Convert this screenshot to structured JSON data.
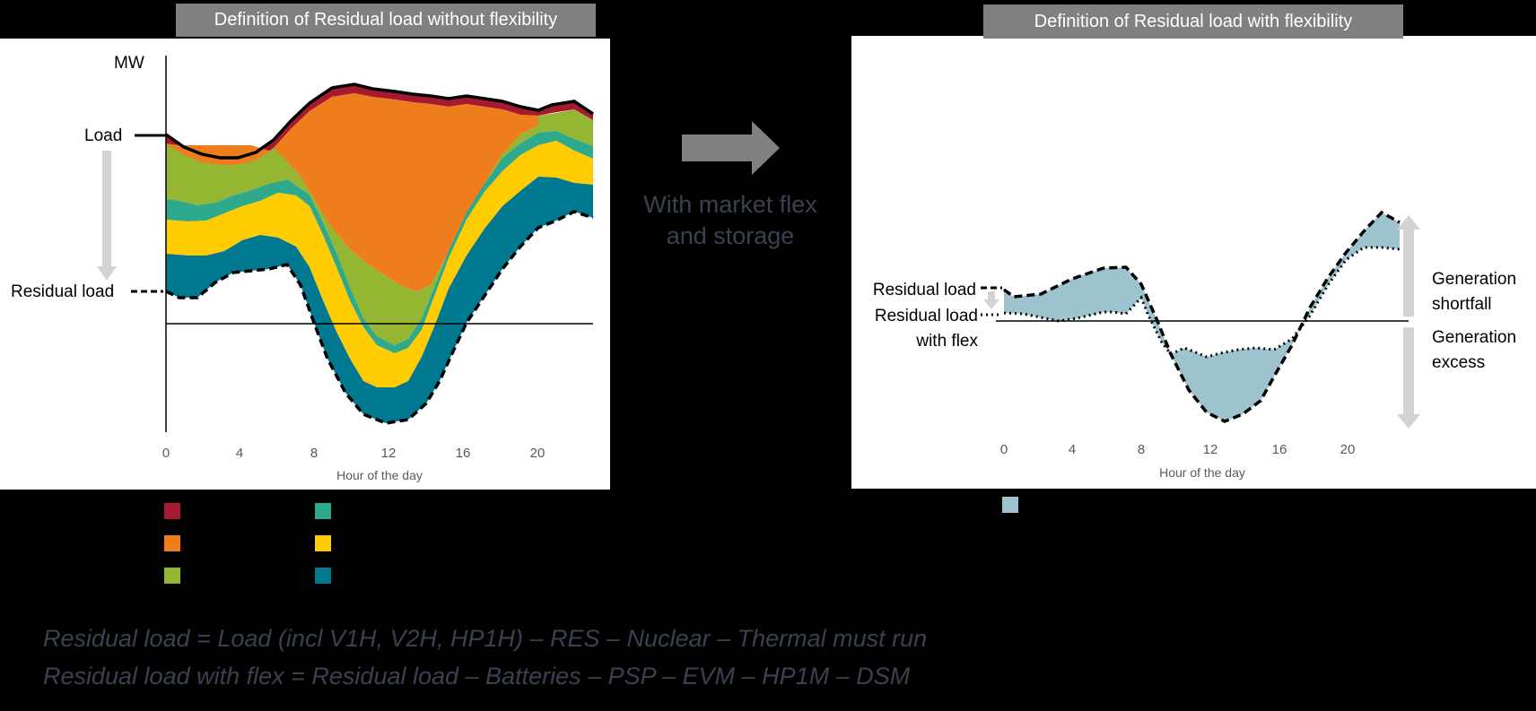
{
  "left_panel": {
    "title": "Definition of Residual load without flexibility",
    "y_unit": "MW",
    "load_label": "Load",
    "residual_label": "Residual load",
    "x_title": "Hour of the day",
    "x_ticks": [
      "0",
      "4",
      "8",
      "12",
      "16",
      "20"
    ]
  },
  "arrow": {
    "text_line1": "With market flex",
    "text_line2": "and storage"
  },
  "right_panel": {
    "title": "Definition of Residual load with flexibility",
    "residual_label": "Residual load",
    "residual_flex_line1": "Residual load",
    "residual_flex_line2": "with flex",
    "shortfall_line1": "Generation",
    "shortfall_line2": "shortfall",
    "excess_line1": "Generation",
    "excess_line2": "excess",
    "x_title": "Hour of the day",
    "x_ticks": [
      "0",
      "4",
      "8",
      "12",
      "16",
      "20"
    ]
  },
  "chart_data": [
    {
      "type": "area",
      "title": "Definition of Residual load without flexibility",
      "xlabel": "Hour of the day",
      "ylabel": "MW",
      "xlim": [
        0,
        24
      ],
      "x_ticks": [
        0,
        4,
        8,
        12,
        16,
        20
      ],
      "series_colors": [
        "#a6192e",
        "#ee7d1c",
        "#94b632",
        "#2fa98c",
        "#ffcc00",
        "#00788f"
      ]
    },
    {
      "type": "line",
      "title": "Definition of Residual load with flexibility",
      "xlabel": "Hour of the day",
      "xlim": [
        0,
        24
      ],
      "x_ticks": [
        0,
        4,
        8,
        12,
        16,
        20
      ],
      "fill_color": "#9dc3cf"
    }
  ],
  "legend": {
    "left_colors": [
      "#a6192e",
      "#ee7d1c",
      "#94b632",
      "#2fa98c",
      "#ffcc00",
      "#00788f"
    ],
    "right_color": "#9dc3cf"
  },
  "formulas": {
    "line1": "Residual load = Load (incl V1H, V2H, HP1H) – RES – Nuclear – Thermal must run",
    "line2": "Residual load with flex = Residual load – Batteries – PSP – EVM – HP1M – DSM"
  }
}
